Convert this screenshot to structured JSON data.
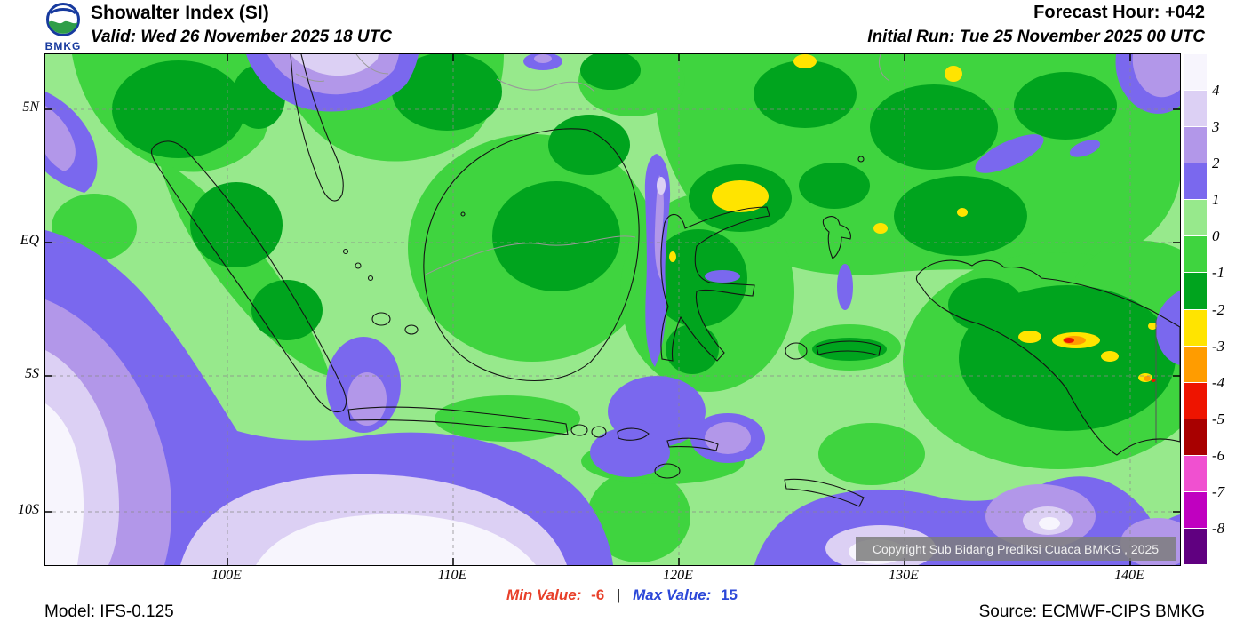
{
  "header": {
    "logo_text": "BMKG",
    "title": "Showalter Index (SI)",
    "valid": "Valid: Wed 26 November 2025 18 UTC",
    "forecast_hour": "Forecast Hour: +042",
    "initial_run": "Initial Run: Tue 25 November 2025 00 UTC"
  },
  "map": {
    "lat_labels": [
      "5N",
      "EQ",
      "5S",
      "10S"
    ],
    "lon_labels": [
      "100E",
      "110E",
      "120E",
      "130E",
      "140E"
    ],
    "copyright": "Copyright Sub Bidang Prediksi Cuaca BMKG , 2025"
  },
  "legend": {
    "values": [
      "4",
      "3",
      "2",
      "1",
      "0",
      "-1",
      "-2",
      "-3",
      "-4",
      "-5",
      "-6",
      "-7",
      "-8"
    ],
    "colors": [
      "#f7f5fd",
      "#dcd0f4",
      "#b297e9",
      "#7a68ee",
      "#97e98c",
      "#3fd43f",
      "#00a41e",
      "#ffe400",
      "#ff9c00",
      "#ee1400",
      "#a80000",
      "#f050d0",
      "#c000c0",
      "#600080"
    ]
  },
  "footer": {
    "model": "Model: IFS-0.125",
    "min_label": "Min Value:",
    "min_value": "-6",
    "separator": "|",
    "max_label": "Max Value:",
    "max_value": "15",
    "source": "Source: ECMWF-CIPS BMKG"
  }
}
